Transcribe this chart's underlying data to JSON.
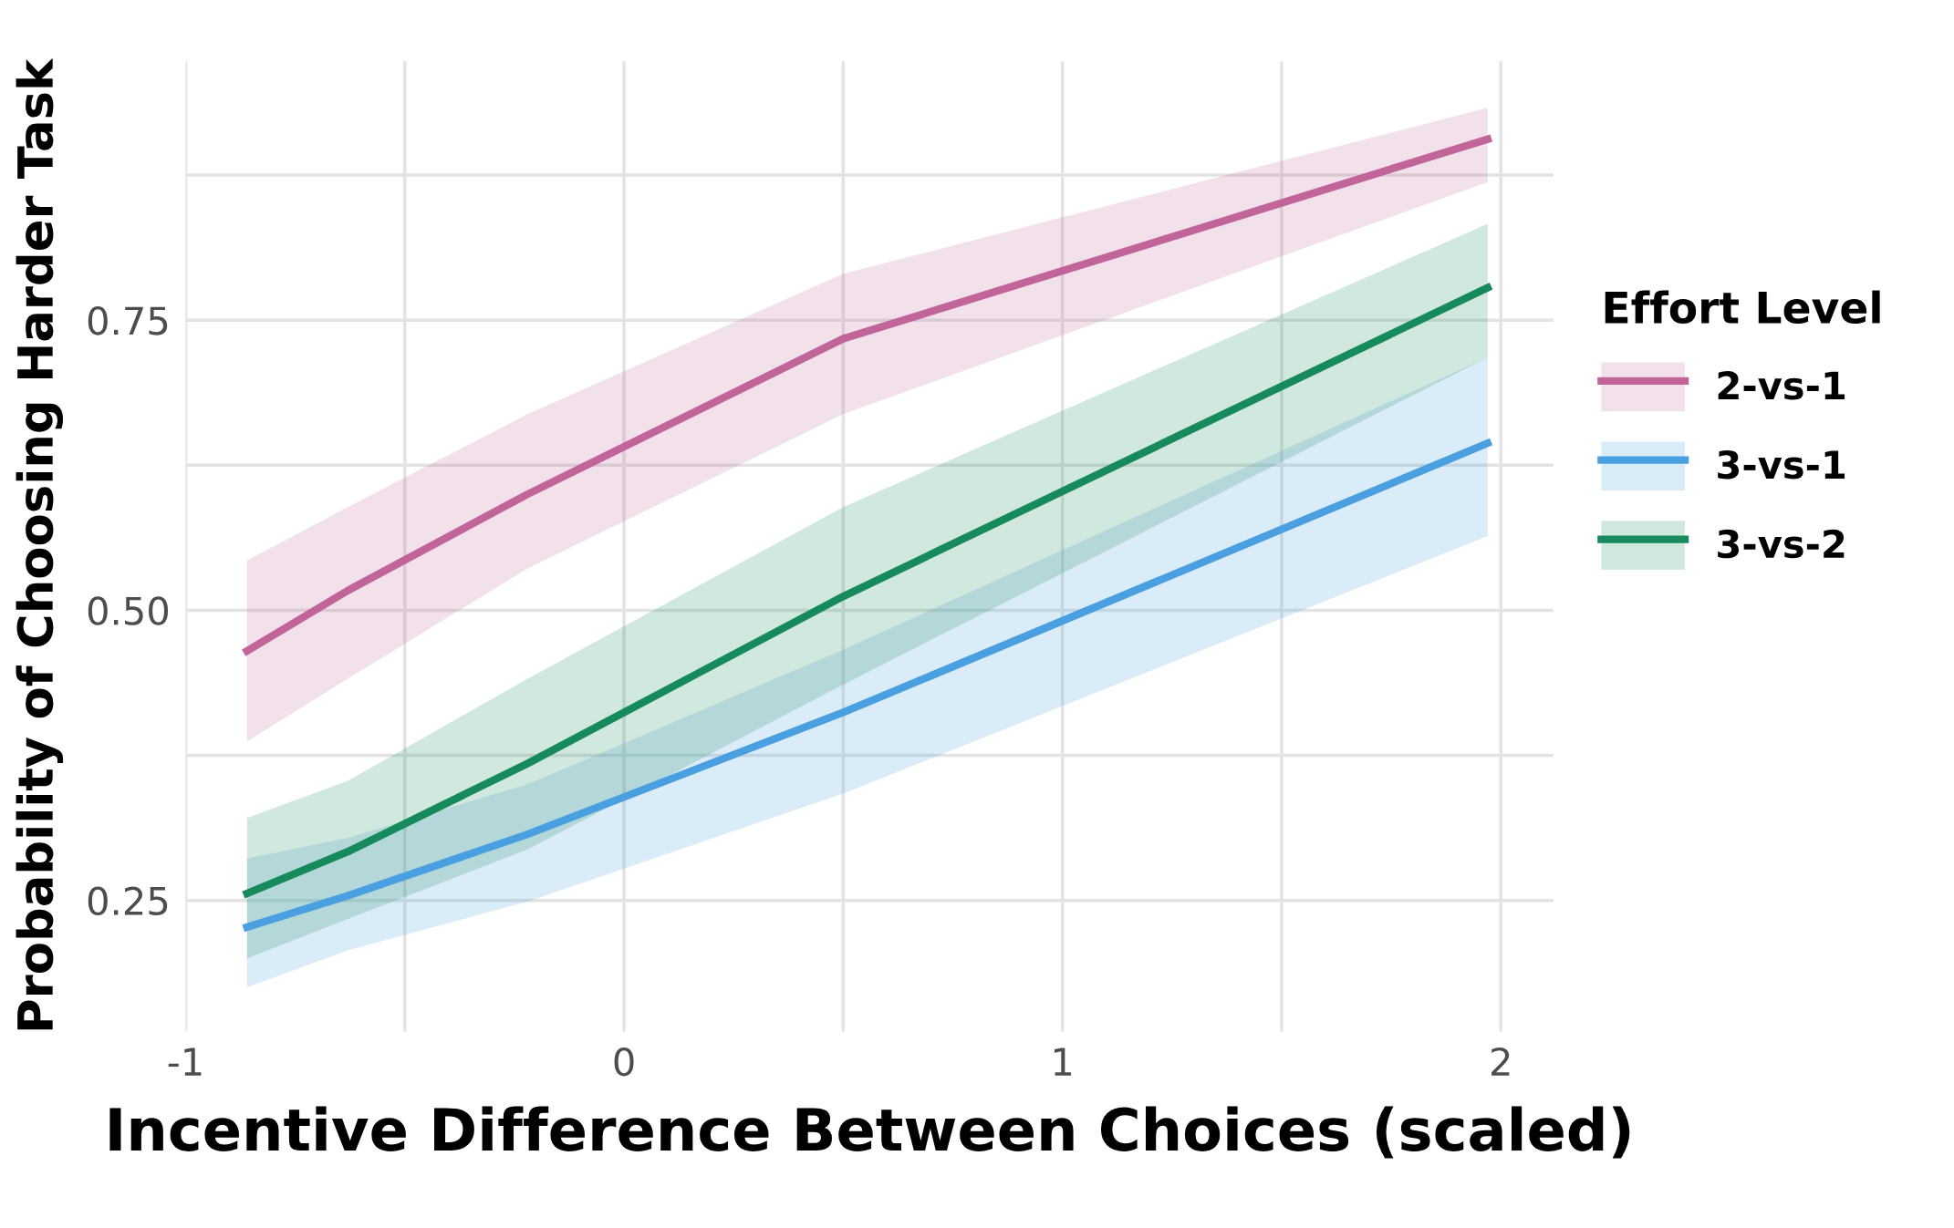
{
  "chart_data": {
    "type": "line",
    "xlabel": "Incentive Difference Between Choices (scaled)",
    "ylabel": "Probability of Choosing Harder Task",
    "legend_title": "Effort Level",
    "x": [
      -0.86,
      -0.63,
      -0.22,
      0.5,
      1.97
    ],
    "series": [
      {
        "name": "2-vs-1",
        "color": "#c0649a",
        "values": [
          0.465,
          0.517,
          0.6,
          0.734,
          0.906
        ],
        "lower": [
          0.387,
          0.441,
          0.536,
          0.669,
          0.869
        ],
        "upper": [
          0.543,
          0.589,
          0.669,
          0.79,
          0.933
        ]
      },
      {
        "name": "3-vs-1",
        "color": "#4a9fe0",
        "values": [
          0.227,
          0.254,
          0.307,
          0.412,
          0.644
        ],
        "lower": [
          0.175,
          0.207,
          0.249,
          0.342,
          0.564
        ],
        "upper": [
          0.286,
          0.304,
          0.35,
          0.466,
          0.718
        ]
      },
      {
        "name": "3-vs-2",
        "color": "#178a5b",
        "values": [
          0.256,
          0.292,
          0.368,
          0.512,
          0.778
        ],
        "lower": [
          0.2,
          0.234,
          0.294,
          0.436,
          0.718
        ],
        "upper": [
          0.321,
          0.353,
          0.441,
          0.589,
          0.833
        ]
      }
    ],
    "xlim": [
      -1.0,
      2.12
    ],
    "ylim": [
      0.137,
      0.973
    ],
    "xticks": [
      -1,
      {
        "value": -0.5,
        "label": null
      },
      0,
      {
        "value": 0.5,
        "label": null
      },
      1,
      {
        "value": 1.5,
        "label": null
      },
      2
    ],
    "yticks": [
      {
        "value": 0.25,
        "label": "0.25"
      },
      {
        "value": 0.375,
        "label": null
      },
      {
        "value": 0.5,
        "label": "0.50"
      },
      {
        "value": 0.625,
        "label": null
      },
      {
        "value": 0.75,
        "label": "0.75"
      },
      {
        "value": 0.875,
        "label": null
      }
    ],
    "grid": true,
    "legend": "right",
    "marker": "none",
    "line_style": "solid"
  }
}
